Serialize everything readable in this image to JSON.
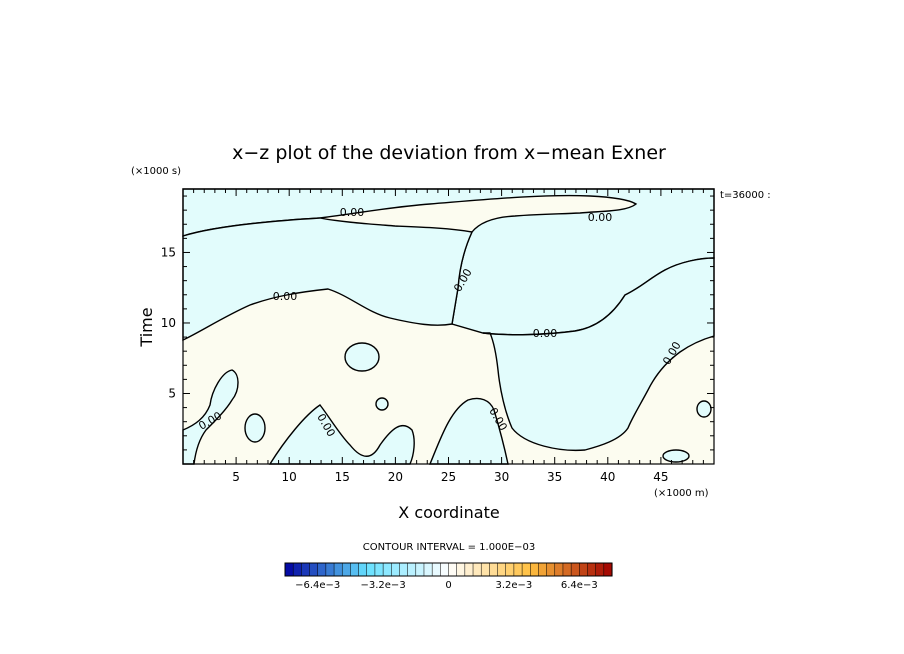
{
  "chart_data": {
    "type": "contour",
    "title": "x−z plot of the deviation from x−mean Exner",
    "xlabel": "X coordinate",
    "ylabel": "Time",
    "x_units": "(×1000 m)",
    "y_units": "(×1000 s)",
    "time_label": "t=36000 :",
    "xlim": [
      0,
      50
    ],
    "ylim": [
      0,
      19.5
    ],
    "x_ticks": [
      "5",
      "10",
      "15",
      "20",
      "25",
      "30",
      "35",
      "40",
      "45"
    ],
    "x_tick_values": [
      5,
      10,
      15,
      20,
      25,
      30,
      35,
      40,
      45
    ],
    "y_ticks": [
      "5",
      "10",
      "15"
    ],
    "y_tick_values": [
      5,
      10,
      15
    ],
    "contour_labels": [
      "0.00",
      "0.00",
      "0.00",
      "0.00",
      "0.00",
      "0.00",
      "0.00",
      "0.00",
      "0.00"
    ],
    "contour_interval_text": "CONTOUR INTERVAL = 1.000E−03",
    "colorbar_labels": [
      "−6.4e−3",
      "−3.2e−3",
      "0",
      "3.2e−3",
      "6.4e−3"
    ],
    "colorbar_label_values": [
      -0.0064,
      -0.0032,
      0,
      0.0032,
      0.0064
    ],
    "colorbar_range": [
      -0.008,
      0.008
    ],
    "colorbar_bins": 40,
    "positive_fill": "#fcfcf0",
    "negative_fill": "#e2fcfc",
    "colors": {
      "negative_end": "#0000a0",
      "negative_mid": "#66e0ff",
      "neutral": "#ffffff",
      "positive_mid": "#ffc040",
      "positive_end": "#a00000"
    }
  }
}
